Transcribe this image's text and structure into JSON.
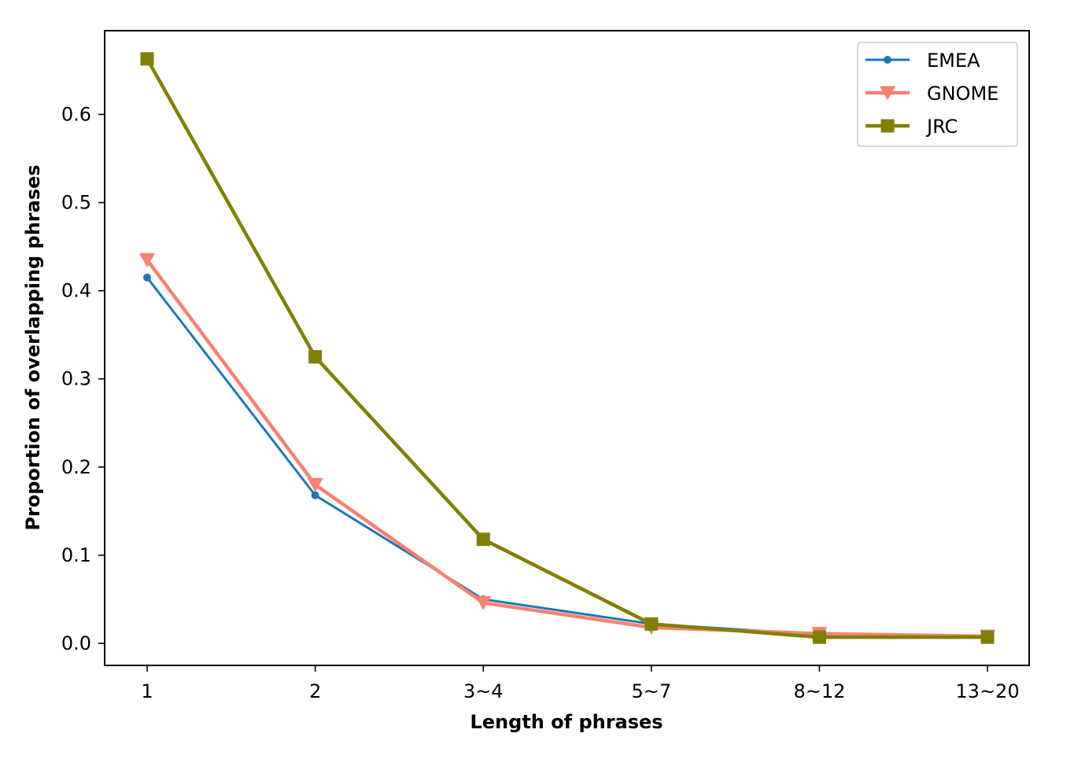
{
  "chart_data": {
    "type": "line",
    "title": "",
    "xlabel": "Length of phrases",
    "ylabel": "Proportion of overlapping phrases",
    "categories": [
      "1",
      "2",
      "3~4",
      "5~7",
      "8~12",
      "13~20"
    ],
    "yticks": [
      "0.0",
      "0.1",
      "0.2",
      "0.3",
      "0.4",
      "0.5",
      "0.6"
    ],
    "ylim": [
      -0.025,
      0.695
    ],
    "grid": false,
    "legend_position": "top-right",
    "series": [
      {
        "name": "EMEA",
        "values": [
          0.415,
          0.168,
          0.05,
          0.022,
          0.01,
          0.008
        ],
        "color": "#1f77b4",
        "marker": "circle"
      },
      {
        "name": "GNOME",
        "values": [
          0.435,
          0.18,
          0.046,
          0.018,
          0.011,
          0.008
        ],
        "color": "#fa8072",
        "marker": "triangle-down"
      },
      {
        "name": "JRC",
        "values": [
          0.663,
          0.325,
          0.118,
          0.022,
          0.007,
          0.007
        ],
        "color": "#808000",
        "marker": "square"
      }
    ]
  }
}
